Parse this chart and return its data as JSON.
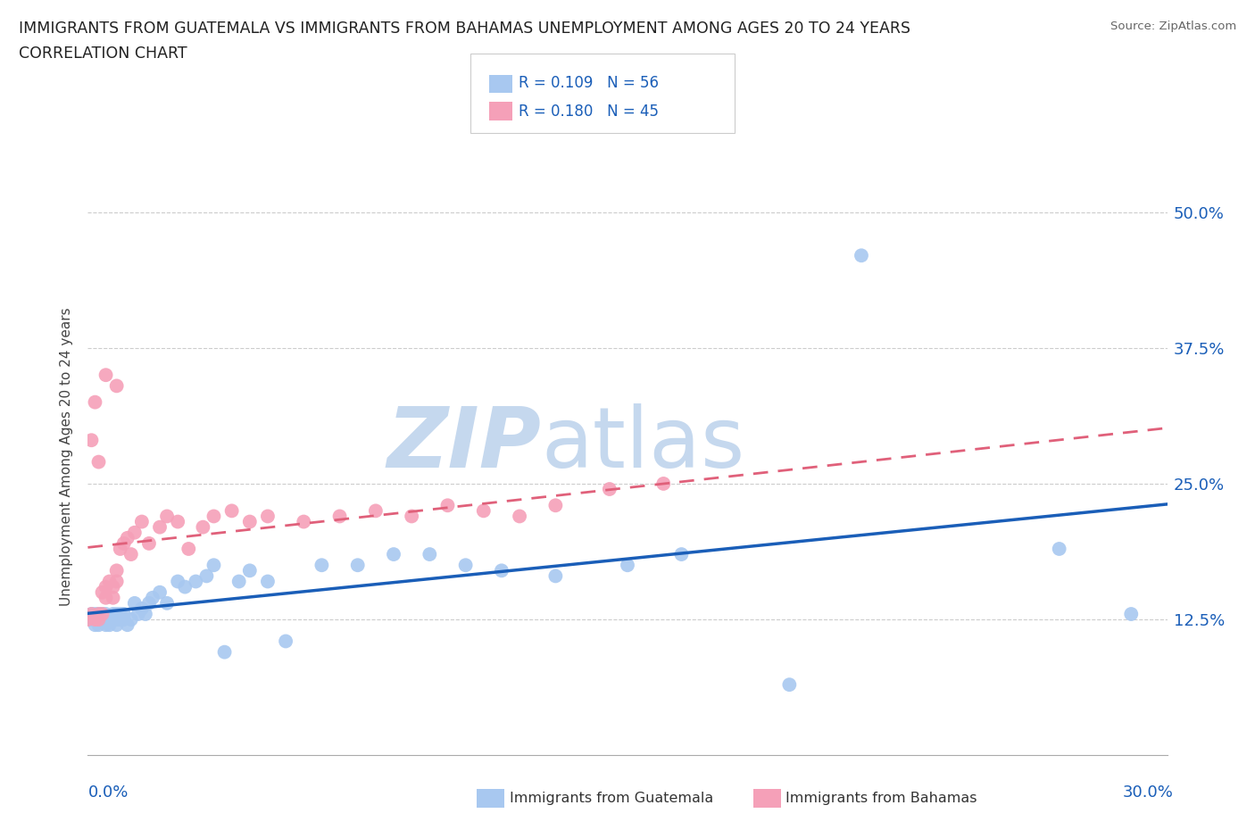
{
  "title_line1": "IMMIGRANTS FROM GUATEMALA VS IMMIGRANTS FROM BAHAMAS UNEMPLOYMENT AMONG AGES 20 TO 24 YEARS",
  "title_line2": "CORRELATION CHART",
  "source": "Source: ZipAtlas.com",
  "ylabel": "Unemployment Among Ages 20 to 24 years",
  "ytick_labels": [
    "50.0%",
    "37.5%",
    "25.0%",
    "12.5%"
  ],
  "ytick_values": [
    0.5,
    0.375,
    0.25,
    0.125
  ],
  "xlim": [
    0.0,
    0.3
  ],
  "ylim": [
    0.0,
    0.55
  ],
  "R_guatemala": 0.109,
  "N_guatemala": 56,
  "R_bahamas": 0.18,
  "N_bahamas": 45,
  "color_guatemala": "#a8c8f0",
  "color_bahamas": "#f5a0b8",
  "line_color_guatemala": "#1a5eb8",
  "line_color_bahamas": "#e0607a",
  "tick_color": "#1a5eb8",
  "watermark_zip": "ZIP",
  "watermark_atlas": "atlas",
  "watermark_color_zip": "#c5d8ee",
  "watermark_color_atlas": "#c5d8ee",
  "guatemala_x": [
    0.001,
    0.001,
    0.002,
    0.002,
    0.003,
    0.003,
    0.003,
    0.004,
    0.004,
    0.005,
    0.005,
    0.005,
    0.006,
    0.006,
    0.007,
    0.007,
    0.008,
    0.008,
    0.008,
    0.009,
    0.009,
    0.01,
    0.01,
    0.011,
    0.012,
    0.013,
    0.014,
    0.015,
    0.016,
    0.017,
    0.018,
    0.02,
    0.022,
    0.025,
    0.027,
    0.03,
    0.033,
    0.035,
    0.038,
    0.042,
    0.045,
    0.05,
    0.055,
    0.065,
    0.075,
    0.085,
    0.095,
    0.105,
    0.115,
    0.13,
    0.15,
    0.165,
    0.195,
    0.215,
    0.27,
    0.29
  ],
  "guatemala_y": [
    0.13,
    0.125,
    0.12,
    0.13,
    0.125,
    0.13,
    0.12,
    0.125,
    0.13,
    0.125,
    0.12,
    0.13,
    0.125,
    0.12,
    0.125,
    0.13,
    0.125,
    0.12,
    0.13,
    0.125,
    0.13,
    0.125,
    0.13,
    0.12,
    0.125,
    0.14,
    0.13,
    0.135,
    0.13,
    0.14,
    0.145,
    0.15,
    0.14,
    0.16,
    0.155,
    0.16,
    0.165,
    0.175,
    0.095,
    0.16,
    0.17,
    0.16,
    0.105,
    0.175,
    0.175,
    0.185,
    0.185,
    0.175,
    0.17,
    0.165,
    0.175,
    0.185,
    0.065,
    0.46,
    0.19,
    0.13
  ],
  "bahamas_x": [
    0.001,
    0.002,
    0.003,
    0.003,
    0.004,
    0.004,
    0.005,
    0.005,
    0.006,
    0.007,
    0.007,
    0.008,
    0.008,
    0.009,
    0.01,
    0.011,
    0.012,
    0.013,
    0.015,
    0.017,
    0.02,
    0.022,
    0.025,
    0.028,
    0.032,
    0.035,
    0.04,
    0.045,
    0.05,
    0.06,
    0.07,
    0.08,
    0.09,
    0.1,
    0.11,
    0.12,
    0.13,
    0.145,
    0.16,
    0.0,
    0.001,
    0.002,
    0.003,
    0.005,
    0.008
  ],
  "bahamas_y": [
    0.13,
    0.125,
    0.13,
    0.125,
    0.13,
    0.15,
    0.145,
    0.155,
    0.16,
    0.145,
    0.155,
    0.17,
    0.16,
    0.19,
    0.195,
    0.2,
    0.185,
    0.205,
    0.215,
    0.195,
    0.21,
    0.22,
    0.215,
    0.19,
    0.21,
    0.22,
    0.225,
    0.215,
    0.22,
    0.215,
    0.22,
    0.225,
    0.22,
    0.23,
    0.225,
    0.22,
    0.23,
    0.245,
    0.25,
    0.125,
    0.29,
    0.325,
    0.27,
    0.35,
    0.34
  ]
}
